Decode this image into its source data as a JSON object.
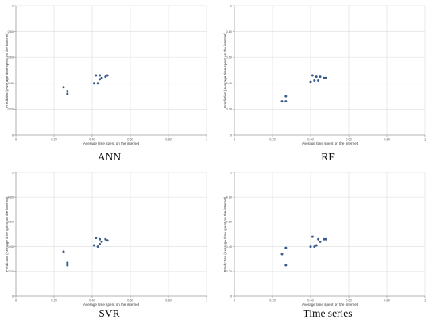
{
  "chart_data": [
    {
      "type": "scatter",
      "caption": "ANN",
      "xlabel": "Average time spent on the internet",
      "ylabel": "Prediction (Average time spent on the internet)",
      "xlim": [
        0,
        1
      ],
      "ylim": [
        0,
        1
      ],
      "xticks": [
        "0",
        "0.20",
        "0.40",
        "0.60",
        "0.80",
        "1"
      ],
      "yticks": [
        "0",
        "0.20",
        "0.40",
        "0.60",
        "0.80",
        "1"
      ],
      "grid": true,
      "color": "#3a5a8c",
      "x": [
        0.25,
        0.27,
        0.27,
        0.41,
        0.42,
        0.43,
        0.44,
        0.44,
        0.45,
        0.47,
        0.48
      ],
      "y": [
        0.37,
        0.34,
        0.32,
        0.4,
        0.46,
        0.4,
        0.46,
        0.43,
        0.44,
        0.45,
        0.46
      ]
    },
    {
      "type": "scatter",
      "caption": "RF",
      "xlabel": "Average time spent on the internet",
      "ylabel": "Prediction (Average time spent on the internet)",
      "xlim": [
        0,
        1
      ],
      "ylim": [
        0,
        1
      ],
      "xticks": [
        "0",
        "0.20",
        "0.40",
        "0.60",
        "0.80",
        "1"
      ],
      "yticks": [
        "0",
        "0.20",
        "0.40",
        "0.60",
        "0.80",
        "1"
      ],
      "grid": true,
      "color": "#3a5a8c",
      "x": [
        0.25,
        0.27,
        0.27,
        0.4,
        0.41,
        0.42,
        0.43,
        0.44,
        0.45,
        0.47,
        0.48
      ],
      "y": [
        0.26,
        0.3,
        0.26,
        0.41,
        0.46,
        0.42,
        0.45,
        0.42,
        0.45,
        0.44,
        0.44
      ]
    },
    {
      "type": "scatter",
      "caption": "SVR",
      "xlabel": "Average time spent on the internet",
      "ylabel": "Prediction (Average time spent on the internet)",
      "xlim": [
        0,
        1
      ],
      "ylim": [
        0,
        1
      ],
      "xticks": [
        "0",
        "0.20",
        "0.40",
        "0.60",
        "0.80",
        "1"
      ],
      "yticks": [
        "0",
        "0.20",
        "0.40",
        "0.60",
        "0.80",
        "1"
      ],
      "grid": true,
      "color": "#3a5a8c",
      "x": [
        0.25,
        0.27,
        0.27,
        0.41,
        0.42,
        0.43,
        0.44,
        0.44,
        0.45,
        0.47,
        0.48
      ],
      "y": [
        0.36,
        0.27,
        0.25,
        0.41,
        0.47,
        0.4,
        0.42,
        0.46,
        0.44,
        0.46,
        0.45
      ]
    },
    {
      "type": "scatter",
      "caption": "Time series",
      "xlabel": "Average time spent on the internet",
      "ylabel": "Prediction (Average time spent on the internet)",
      "xlim": [
        0,
        1
      ],
      "ylim": [
        0,
        1
      ],
      "xticks": [
        "0",
        "0.20",
        "0.40",
        "0.60",
        "0.80",
        "1"
      ],
      "yticks": [
        "0",
        "0.20",
        "0.40",
        "0.60",
        "0.80",
        "1"
      ],
      "grid": true,
      "color": "#3a5a8c",
      "x": [
        0.25,
        0.27,
        0.27,
        0.4,
        0.41,
        0.42,
        0.43,
        0.44,
        0.45,
        0.47,
        0.48
      ],
      "y": [
        0.34,
        0.39,
        0.25,
        0.4,
        0.48,
        0.4,
        0.41,
        0.46,
        0.44,
        0.46,
        0.46
      ]
    }
  ]
}
